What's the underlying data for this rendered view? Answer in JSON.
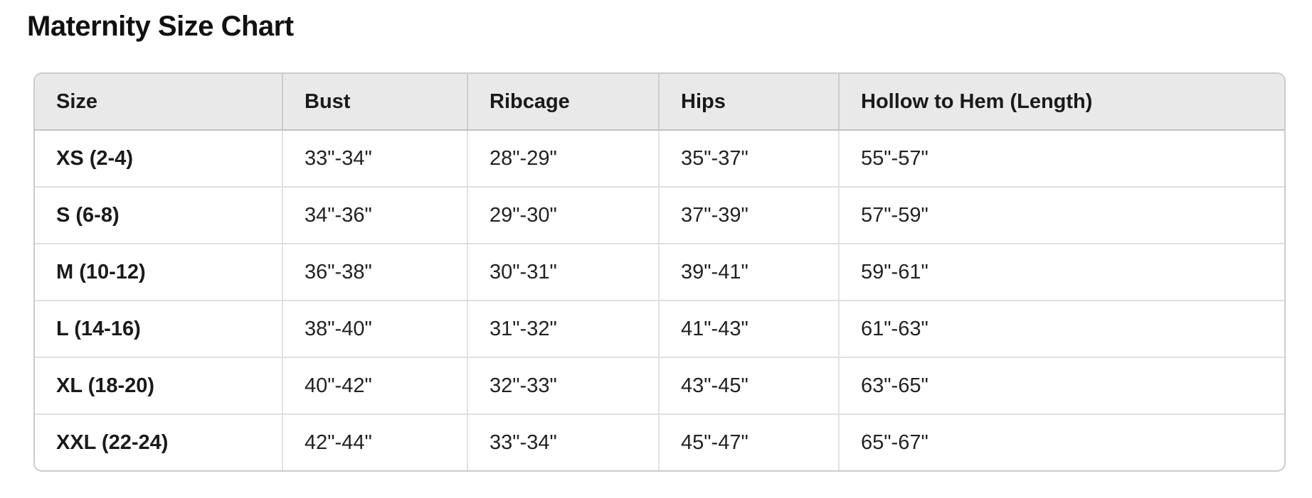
{
  "page": {
    "title": "Maternity Size Chart"
  },
  "table": {
    "columns": [
      "Size",
      "Bust",
      "Ribcage",
      "Hips",
      "Hollow to Hem (Length)"
    ],
    "rows": [
      [
        "XS (2-4)",
        "33\"-34\"",
        "28\"-29\"",
        "35\"-37\"",
        "55\"-57\""
      ],
      [
        "S (6-8)",
        "34\"-36\"",
        "29\"-30\"",
        "37\"-39\"",
        "57\"-59\""
      ],
      [
        "M (10-12)",
        "36\"-38\"",
        "30\"-31\"",
        "39\"-41\"",
        "59\"-61\""
      ],
      [
        "L (14-16)",
        "38\"-40\"",
        "31\"-32\"",
        "41\"-43\"",
        "61\"-63\""
      ],
      [
        "XL (18-20)",
        "40\"-42\"",
        "32\"-33\"",
        "43\"-45\"",
        "63\"-65\""
      ],
      [
        "XXL (22-24)",
        "42\"-44\"",
        "33\"-34\"",
        "45\"-47\"",
        "65\"-67\""
      ]
    ]
  },
  "colors": {
    "header_background": "#e9e9e9",
    "outer_border": "#cbcbcb",
    "header_divider": "#c2c2c2",
    "row_divider": "#dfdfdf",
    "text": "#1f1f1f"
  }
}
